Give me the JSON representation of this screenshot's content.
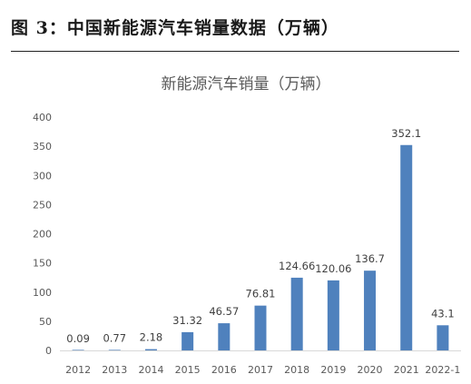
{
  "figure": {
    "caption": "图 3：中国新能源汽车销量数据（万辆）"
  },
  "chart_data": {
    "type": "bar",
    "title": "新能源汽车销量（万辆）",
    "categories": [
      "2012",
      "2013",
      "2014",
      "2015",
      "2016",
      "2017",
      "2018",
      "2019",
      "2020",
      "2021",
      "2022-1"
    ],
    "values": [
      0.09,
      0.77,
      2.18,
      31.32,
      46.57,
      76.81,
      124.66,
      120.06,
      136.7,
      352.1,
      43.1
    ],
    "value_labels": [
      "0.09",
      "0.77",
      "2.18",
      "31.32",
      "46.57",
      "76.81",
      "124.66",
      "120.06",
      "136.7",
      "352.1",
      "43.1"
    ],
    "yticks": [
      "0",
      "50",
      "100",
      "150",
      "200",
      "250",
      "300",
      "350",
      "400"
    ],
    "ylim": [
      0,
      400
    ],
    "grid": false,
    "bar_color": "#4f81bd"
  }
}
